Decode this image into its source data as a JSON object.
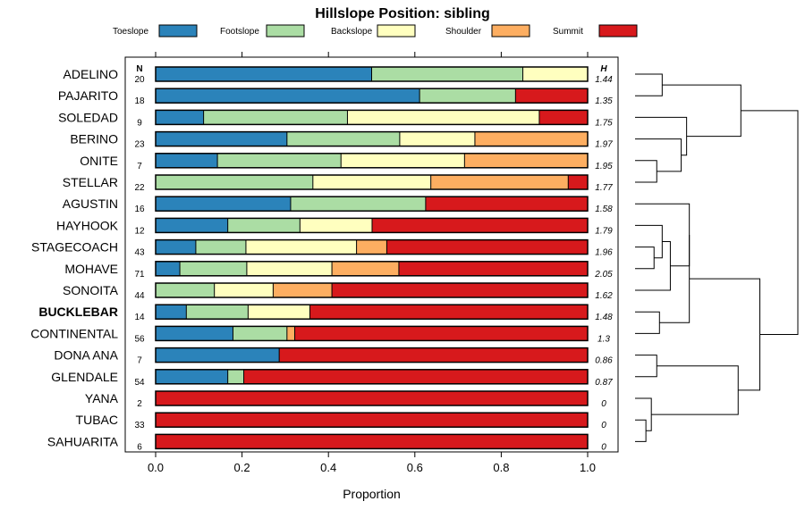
{
  "chart_data": {
    "type": "bar",
    "title": "Hillslope Position: sibling",
    "xlabel": "Proportion",
    "ylabel": "",
    "xlim": [
      0,
      1
    ],
    "x_ticks": [
      "0.0",
      "0.2",
      "0.4",
      "0.6",
      "0.8",
      "1.0"
    ],
    "n_header": "N",
    "h_header": "H",
    "highlight": "BUCKLEBAR",
    "series": [
      {
        "name": "Toeslope",
        "color": "#2B83BA"
      },
      {
        "name": "Footslope",
        "color": "#ABDDA4"
      },
      {
        "name": "Backslope",
        "color": "#FFFFBF"
      },
      {
        "name": "Shoulder",
        "color": "#FDAE61"
      },
      {
        "name": "Summit",
        "color": "#D7191C"
      }
    ],
    "categories": [
      {
        "name": "ADELINO",
        "n": "20",
        "h": "1.44",
        "values": [
          0.5,
          0.35,
          0.15,
          0,
          0
        ]
      },
      {
        "name": "PAJARITO",
        "n": "18",
        "h": "1.35",
        "values": [
          0.611,
          0.222,
          0,
          0,
          0.167
        ]
      },
      {
        "name": "SOLEDAD",
        "n": "9",
        "h": "1.75",
        "values": [
          0.111,
          0.333,
          0.444,
          0,
          0.111
        ]
      },
      {
        "name": "BERINO",
        "n": "23",
        "h": "1.97",
        "values": [
          0.304,
          0.261,
          0.174,
          0.261,
          0
        ]
      },
      {
        "name": "ONITE",
        "n": "7",
        "h": "1.95",
        "values": [
          0.143,
          0.286,
          0.286,
          0.286,
          0
        ]
      },
      {
        "name": "STELLAR",
        "n": "22",
        "h": "1.77",
        "values": [
          0,
          0.364,
          0.273,
          0.318,
          0.045
        ]
      },
      {
        "name": "AGUSTIN",
        "n": "16",
        "h": "1.58",
        "values": [
          0.3125,
          0.3125,
          0,
          0,
          0.375
        ]
      },
      {
        "name": "HAYHOOK",
        "n": "12",
        "h": "1.79",
        "values": [
          0.167,
          0.167,
          0.167,
          0,
          0.5
        ]
      },
      {
        "name": "STAGECOACH",
        "n": "43",
        "h": "1.96",
        "values": [
          0.093,
          0.116,
          0.256,
          0.07,
          0.465
        ]
      },
      {
        "name": "MOHAVE",
        "n": "71",
        "h": "2.05",
        "values": [
          0.056,
          0.155,
          0.197,
          0.155,
          0.437
        ]
      },
      {
        "name": "SONOITA",
        "n": "44",
        "h": "1.62",
        "values": [
          0,
          0.136,
          0.136,
          0.136,
          0.591
        ]
      },
      {
        "name": "BUCKLEBAR",
        "n": "14",
        "h": "1.48",
        "values": [
          0.071,
          0.143,
          0.143,
          0,
          0.643
        ]
      },
      {
        "name": "CONTINENTAL",
        "n": "56",
        "h": "1.3",
        "values": [
          0.179,
          0.125,
          0,
          0.018,
          0.679
        ]
      },
      {
        "name": "DONA ANA",
        "n": "7",
        "h": "0.86",
        "values": [
          0.286,
          0,
          0,
          0,
          0.714
        ]
      },
      {
        "name": "GLENDALE",
        "n": "54",
        "h": "0.87",
        "values": [
          0.167,
          0.037,
          0,
          0,
          0.796
        ]
      },
      {
        "name": "YANA",
        "n": "2",
        "h": "0",
        "values": [
          0,
          0,
          0,
          0,
          1
        ]
      },
      {
        "name": "TUBAC",
        "n": "33",
        "h": "0",
        "values": [
          0,
          0,
          0,
          0,
          1
        ]
      },
      {
        "name": "SAHUARITA",
        "n": "6",
        "h": "0",
        "values": [
          0,
          0,
          0,
          0,
          1
        ]
      }
    ],
    "dendrogram": {
      "nodes": [
        {
          "left": 0,
          "right": 1,
          "height": 0.1
        },
        {
          "left": 4,
          "right": 5,
          "height": 0.08
        },
        {
          "left": 3,
          "right": 19,
          "height": 0.17
        },
        {
          "left": 2,
          "right": 20,
          "height": 0.19
        },
        {
          "left": 18,
          "right": 21,
          "height": 0.39
        },
        {
          "left": 8,
          "right": 9,
          "height": 0.07
        },
        {
          "left": 7,
          "right": 23,
          "height": 0.1
        },
        {
          "left": 10,
          "right": 24,
          "height": 0.13
        },
        {
          "left": 6,
          "right": 25,
          "height": 0.2
        },
        {
          "left": 11,
          "right": 12,
          "height": 0.09
        },
        {
          "left": 26,
          "right": 27,
          "height": 0.2
        },
        {
          "left": 13,
          "right": 14,
          "height": 0.08
        },
        {
          "left": 16,
          "right": 17,
          "height": 0.04
        },
        {
          "left": 15,
          "right": 30,
          "height": 0.06
        },
        {
          "left": 29,
          "right": 31,
          "height": 0.38
        },
        {
          "left": 28,
          "right": 32,
          "height": 0.46
        },
        {
          "left": 22,
          "right": 33,
          "height": 0.6
        }
      ],
      "max_height": 0.6
    }
  }
}
